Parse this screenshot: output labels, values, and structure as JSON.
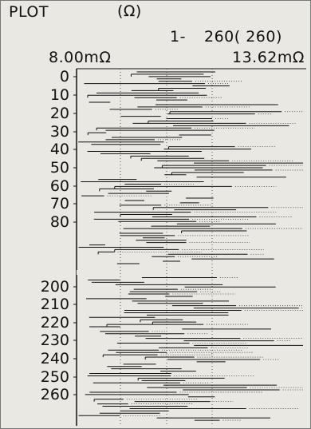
{
  "header": {
    "title": "PLOT",
    "unit": "(Ω)",
    "range": "1-",
    "count": "260( 260)",
    "x_min": "8.00mΩ",
    "x_max": "13.62mΩ"
  },
  "chart_data": {
    "type": "bar",
    "title": "PLOT",
    "xlim": [
      8.0,
      13.62
    ],
    "x_unit": "mΩ",
    "y_tick_labels_upper": [
      "0",
      "10",
      "20",
      "30",
      "40",
      "50",
      "60",
      "70",
      "80"
    ],
    "y_tick_labels_lower": [
      "200",
      "210",
      "220",
      "230",
      "240",
      "250",
      "260"
    ],
    "records_shown": 260,
    "grid": "dotted reference line per record"
  }
}
